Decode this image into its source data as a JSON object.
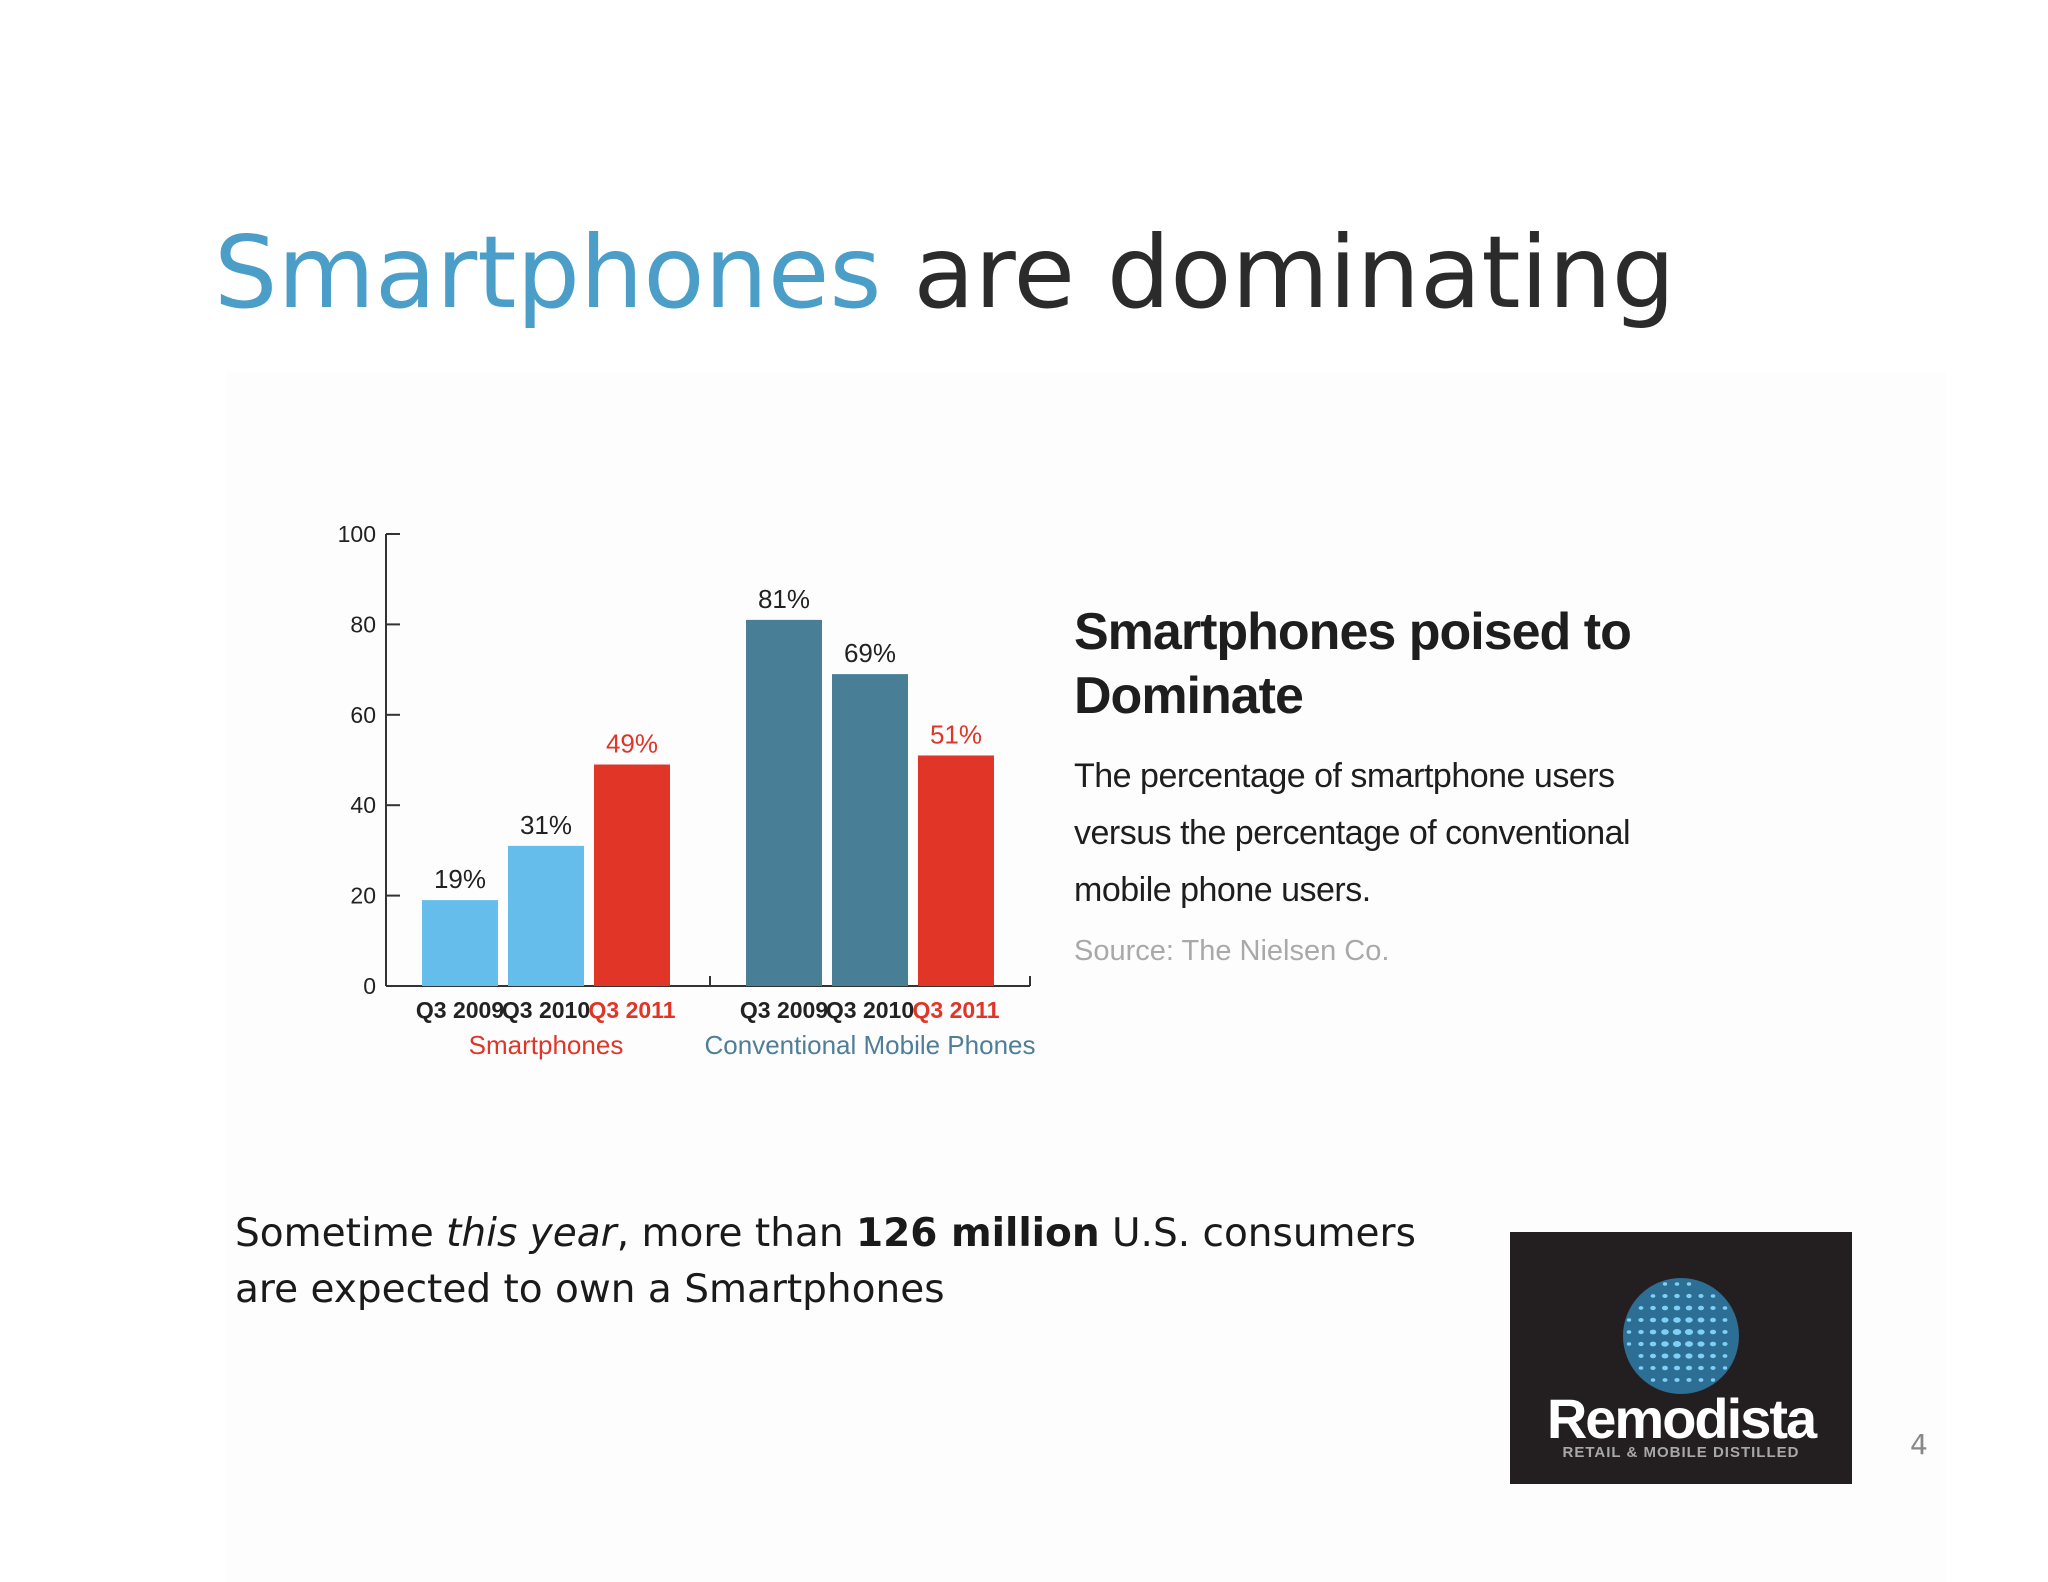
{
  "slide": {
    "title_accent": "Smartphones",
    "title_rest": " are dominating",
    "body": {
      "part1": "Sometime ",
      "italic": "this year",
      "part2": ", more than ",
      "bold": "126 million",
      "part3": " U.S. consumers are expected to own a Smartphones"
    },
    "page_number": "4",
    "logo": {
      "name": "Remodista",
      "tagline": "RETAIL & MOBILE DISTILLED",
      "icon": "dotted-globe-icon"
    }
  },
  "chart_data": {
    "type": "bar",
    "title": "Smartphones poised to Dominate",
    "subtitle": "The percentage of smartphone users versus the percentage of conventional mobile phone users.",
    "source": "Source: The Nielsen Co.",
    "xlabel": "",
    "ylabel": "",
    "ylim": [
      0,
      100
    ],
    "yticks": [
      0,
      20,
      40,
      60,
      80,
      100
    ],
    "grid": false,
    "legend": "none",
    "groups": [
      {
        "name": "Smartphones",
        "color": "#e03527",
        "bars": [
          {
            "category": "Q3 2009",
            "value": 19,
            "label": "19%",
            "color": "#65bdec",
            "highlight": false
          },
          {
            "category": "Q3 2010",
            "value": 31,
            "label": "31%",
            "color": "#65bdec",
            "highlight": false
          },
          {
            "category": "Q3 2011",
            "value": 49,
            "label": "49%",
            "color": "#e03527",
            "highlight": true
          }
        ]
      },
      {
        "name": "Conventional Mobile Phones",
        "color": "#4f7e99",
        "bars": [
          {
            "category": "Q3 2009",
            "value": 81,
            "label": "81%",
            "color": "#497e97",
            "highlight": false
          },
          {
            "category": "Q3 2010",
            "value": 69,
            "label": "69%",
            "color": "#497e97",
            "highlight": false
          },
          {
            "category": "Q3 2011",
            "value": 51,
            "label": "51%",
            "color": "#e03527",
            "highlight": true
          }
        ]
      }
    ]
  }
}
